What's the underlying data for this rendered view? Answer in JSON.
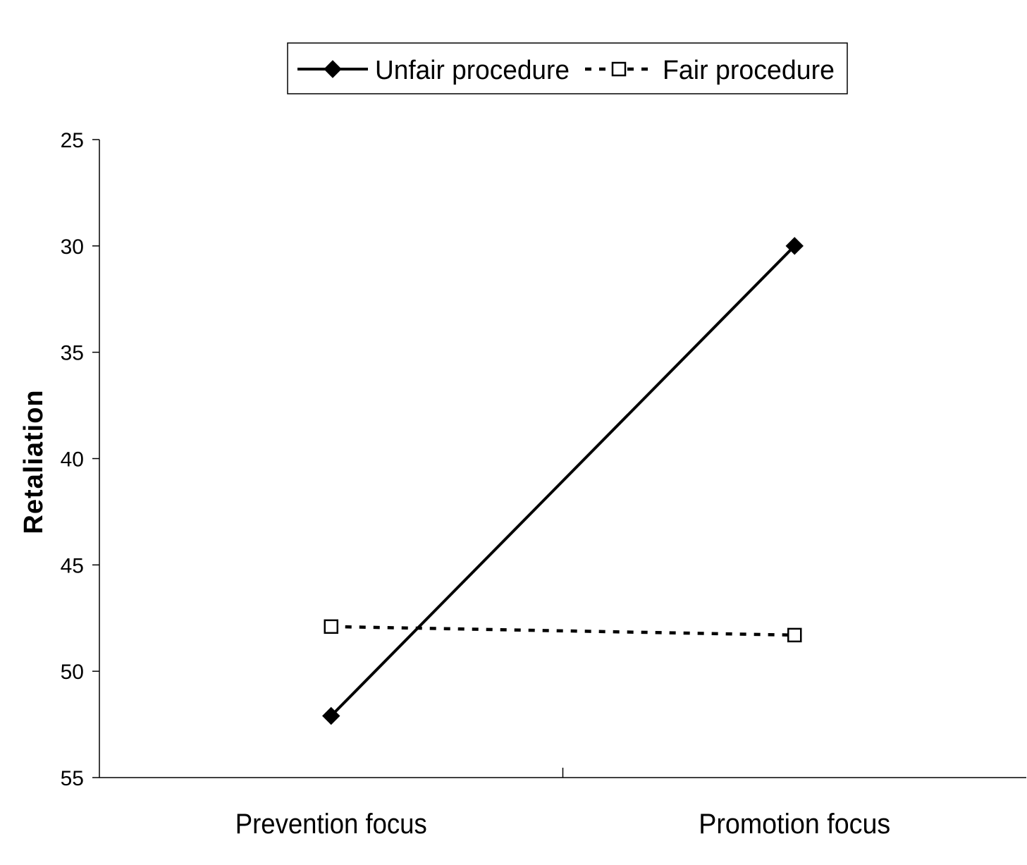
{
  "chart_data": {
    "type": "line",
    "title": "",
    "xlabel": "",
    "ylabel": "Retaliation",
    "categories": [
      "Prevention focus",
      "Promotion focus"
    ],
    "ylim": [
      25,
      55
    ],
    "y_inverted": true,
    "y_ticks": [
      25,
      30,
      35,
      40,
      45,
      50,
      55
    ],
    "grid": false,
    "legend_position": "top",
    "series": [
      {
        "name": "Unfair procedure",
        "values": [
          52.1,
          30.0
        ],
        "line_style": "solid",
        "marker": "filled-diamond",
        "color": "#000000"
      },
      {
        "name": "Fair procedure",
        "values": [
          47.9,
          48.3
        ],
        "line_style": "dotted",
        "marker": "open-square",
        "color": "#000000"
      }
    ]
  }
}
